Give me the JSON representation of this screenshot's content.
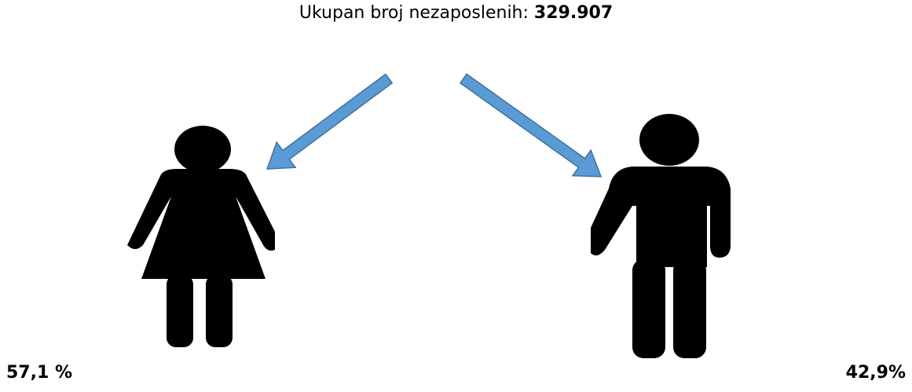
{
  "title": {
    "label": "Ukupan broj nezaposlenih:",
    "value": "329.907"
  },
  "groups": [
    {
      "percent": "57,1 %"
    },
    {
      "percent": "42,9%"
    }
  ]
}
